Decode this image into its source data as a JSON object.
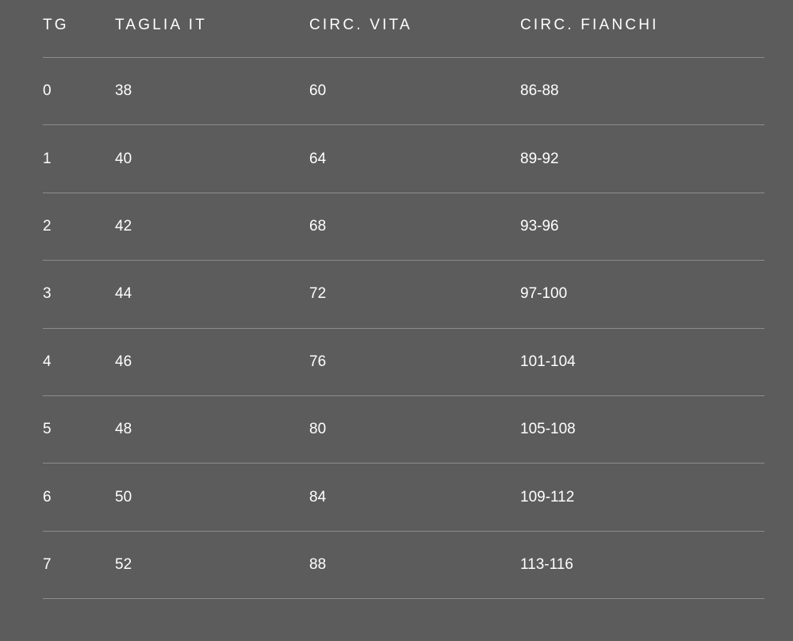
{
  "table": {
    "headers": [
      "TG",
      "TAGLIA IT",
      "CIRC. VITA",
      "CIRC. FIANCHI"
    ],
    "rows": [
      [
        "0",
        "38",
        "60",
        "86-88"
      ],
      [
        "1",
        "40",
        "64",
        "89-92"
      ],
      [
        "2",
        "42",
        "68",
        "93-96"
      ],
      [
        "3",
        "44",
        "72",
        "97-100"
      ],
      [
        "4",
        "46",
        "76",
        "101-104"
      ],
      [
        "5",
        "48",
        "80",
        "105-108"
      ],
      [
        "6",
        "50",
        "84",
        "109-112"
      ],
      [
        "7",
        "52",
        "88",
        "113-116"
      ]
    ]
  },
  "colors": {
    "background": "#5c5c5c",
    "text": "#ffffff",
    "divider": "#8c8c8c"
  }
}
